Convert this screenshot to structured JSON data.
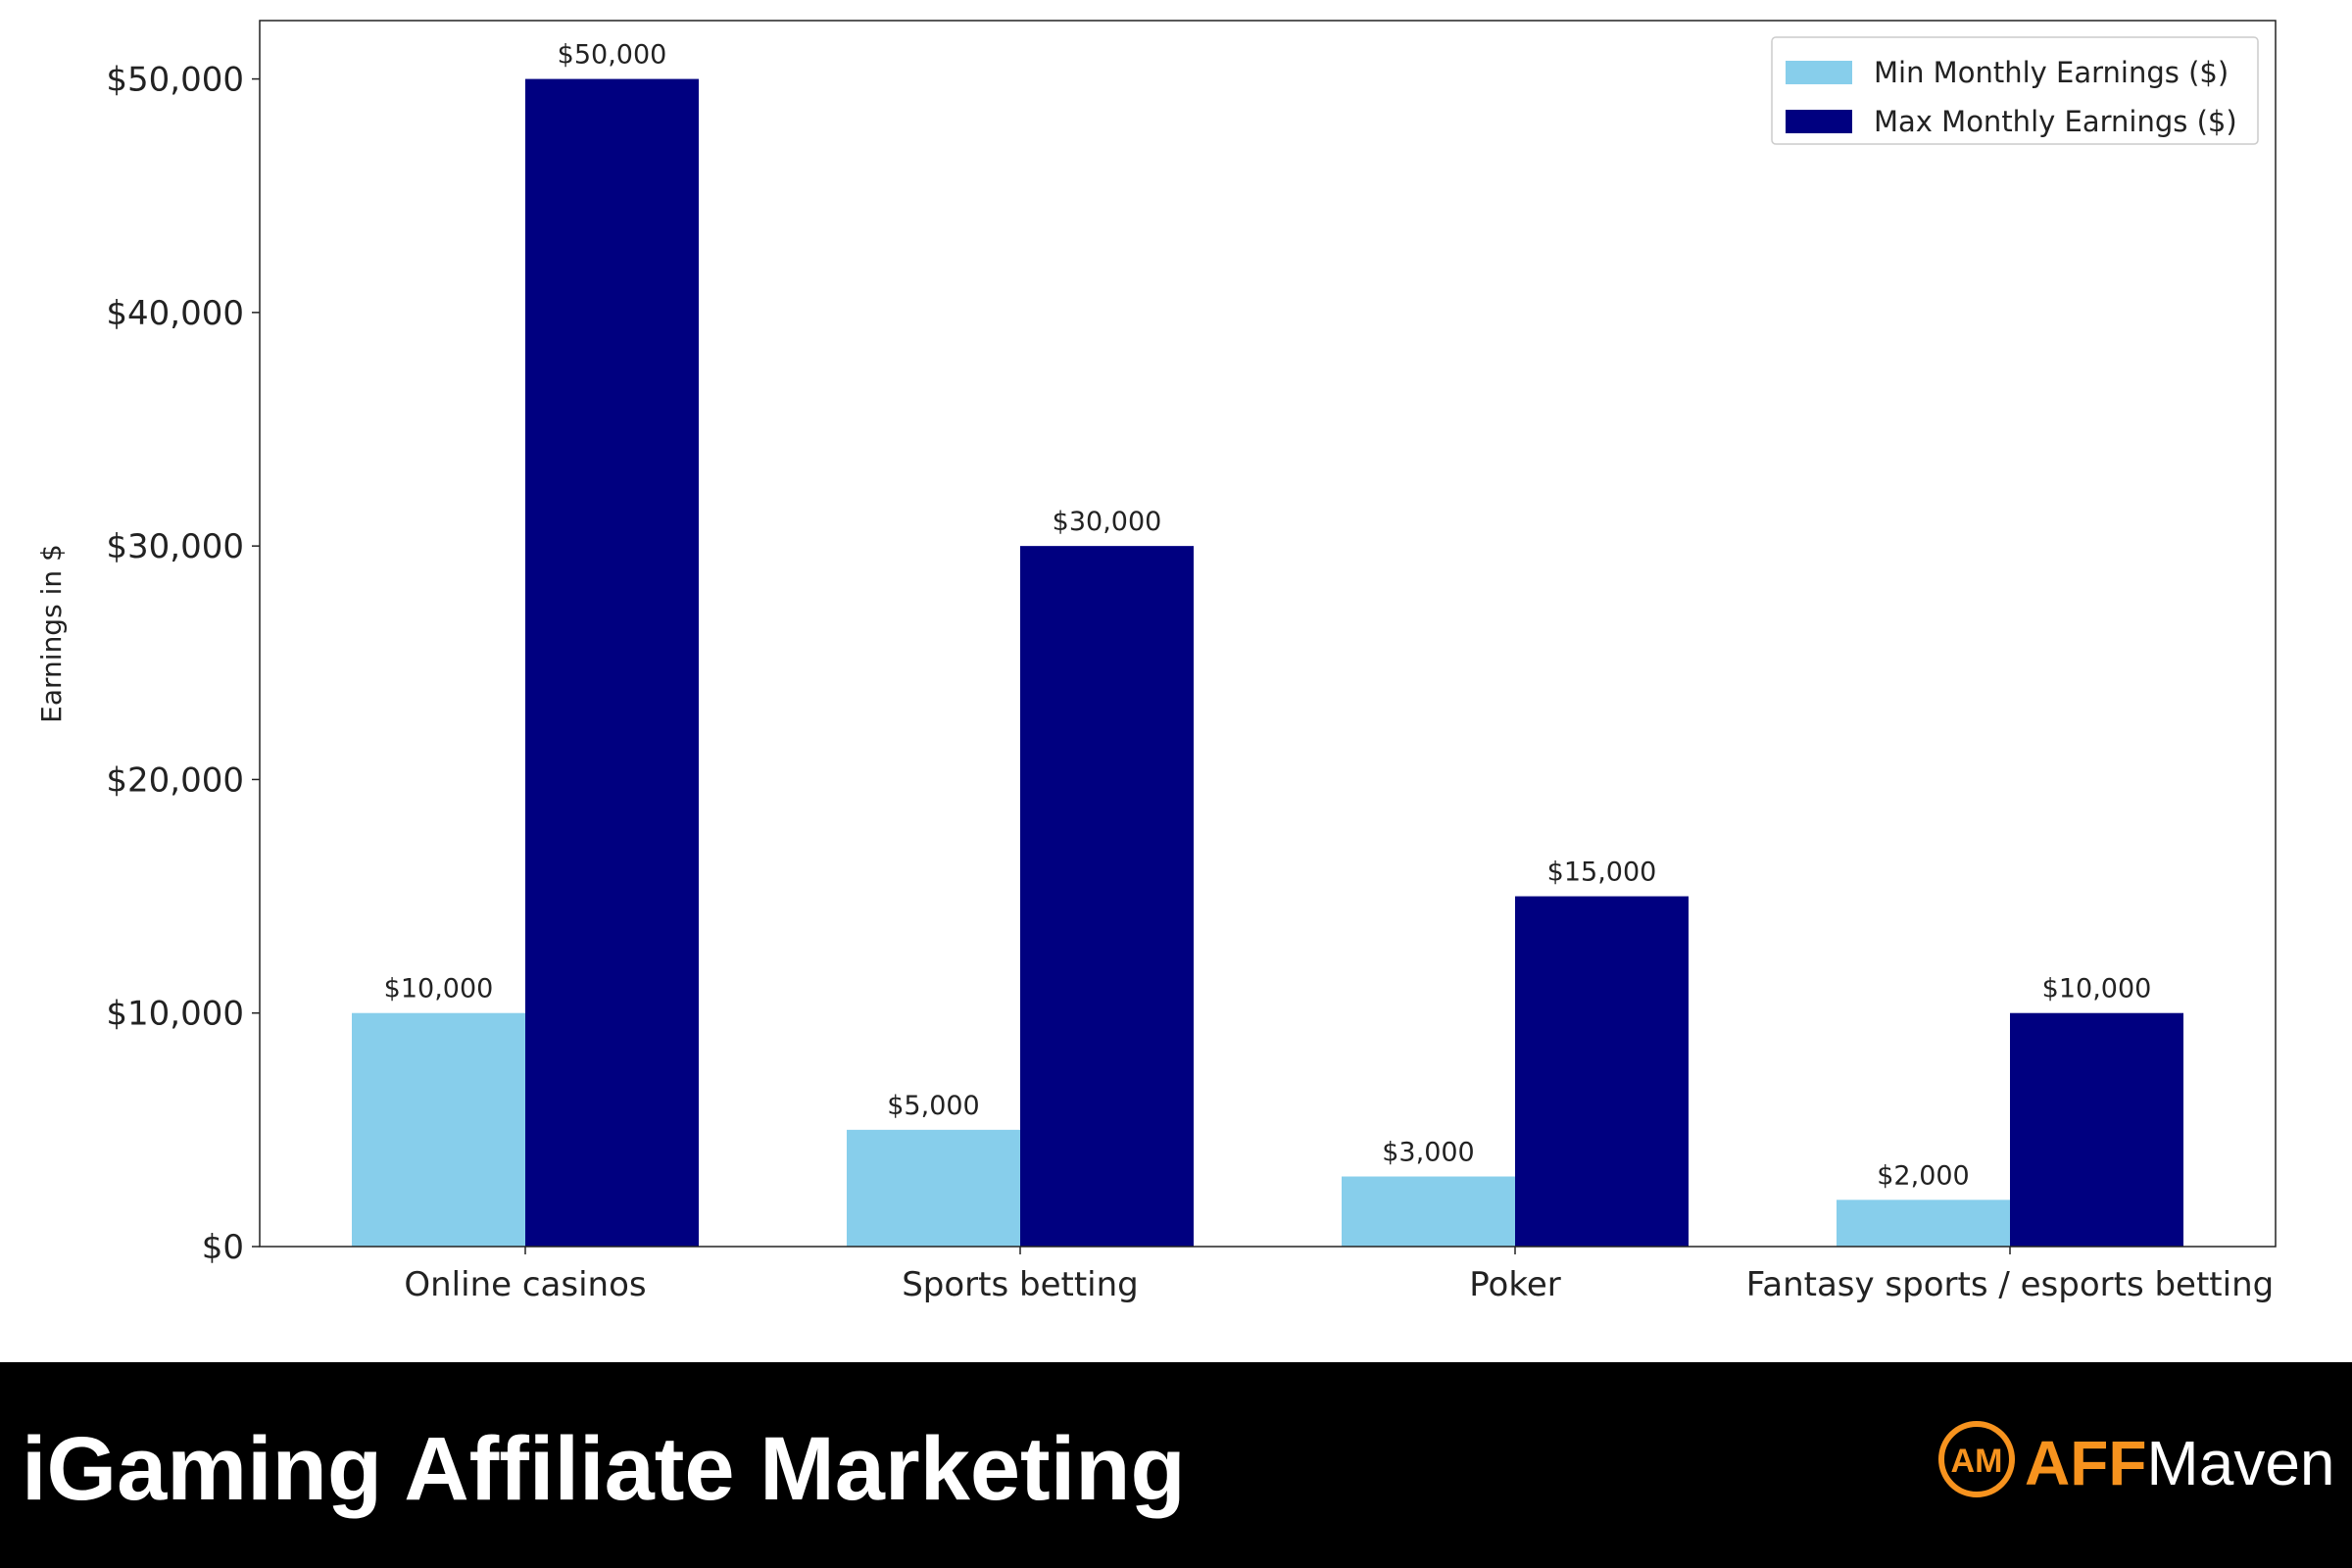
{
  "chart_data": {
    "type": "bar",
    "ylabel": "Earnings in $",
    "categories": [
      "Online casinos",
      "Sports betting",
      "Poker",
      "Fantasy sports / esports betting"
    ],
    "series": [
      {
        "name": "Min Monthly Earnings ($)",
        "color": "#87ceeb",
        "values": [
          10000,
          5000,
          3000,
          2000
        ],
        "value_labels": [
          "$10,000",
          "$5,000",
          "$3,000",
          "$2,000"
        ]
      },
      {
        "name": "Max Monthly Earnings ($)",
        "color": "#000080",
        "values": [
          50000,
          30000,
          15000,
          10000
        ],
        "value_labels": [
          "$50,000",
          "$30,000",
          "$15,000",
          "$10,000"
        ]
      }
    ],
    "ylim": [
      0,
      52500
    ],
    "yticks": [
      {
        "value": 0,
        "label": "$0"
      },
      {
        "value": 10000,
        "label": "$10,000"
      },
      {
        "value": 20000,
        "label": "$20,000"
      },
      {
        "value": 30000,
        "label": "$30,000"
      },
      {
        "value": 40000,
        "label": "$40,000"
      },
      {
        "value": 50000,
        "label": "$50,000"
      }
    ],
    "grid": false,
    "legend": "upper right"
  },
  "banner": {
    "title": "iGaming Affiliate Marketing",
    "logo": {
      "icon": "AM",
      "brand": "AFF",
      "name": "Maven"
    }
  }
}
